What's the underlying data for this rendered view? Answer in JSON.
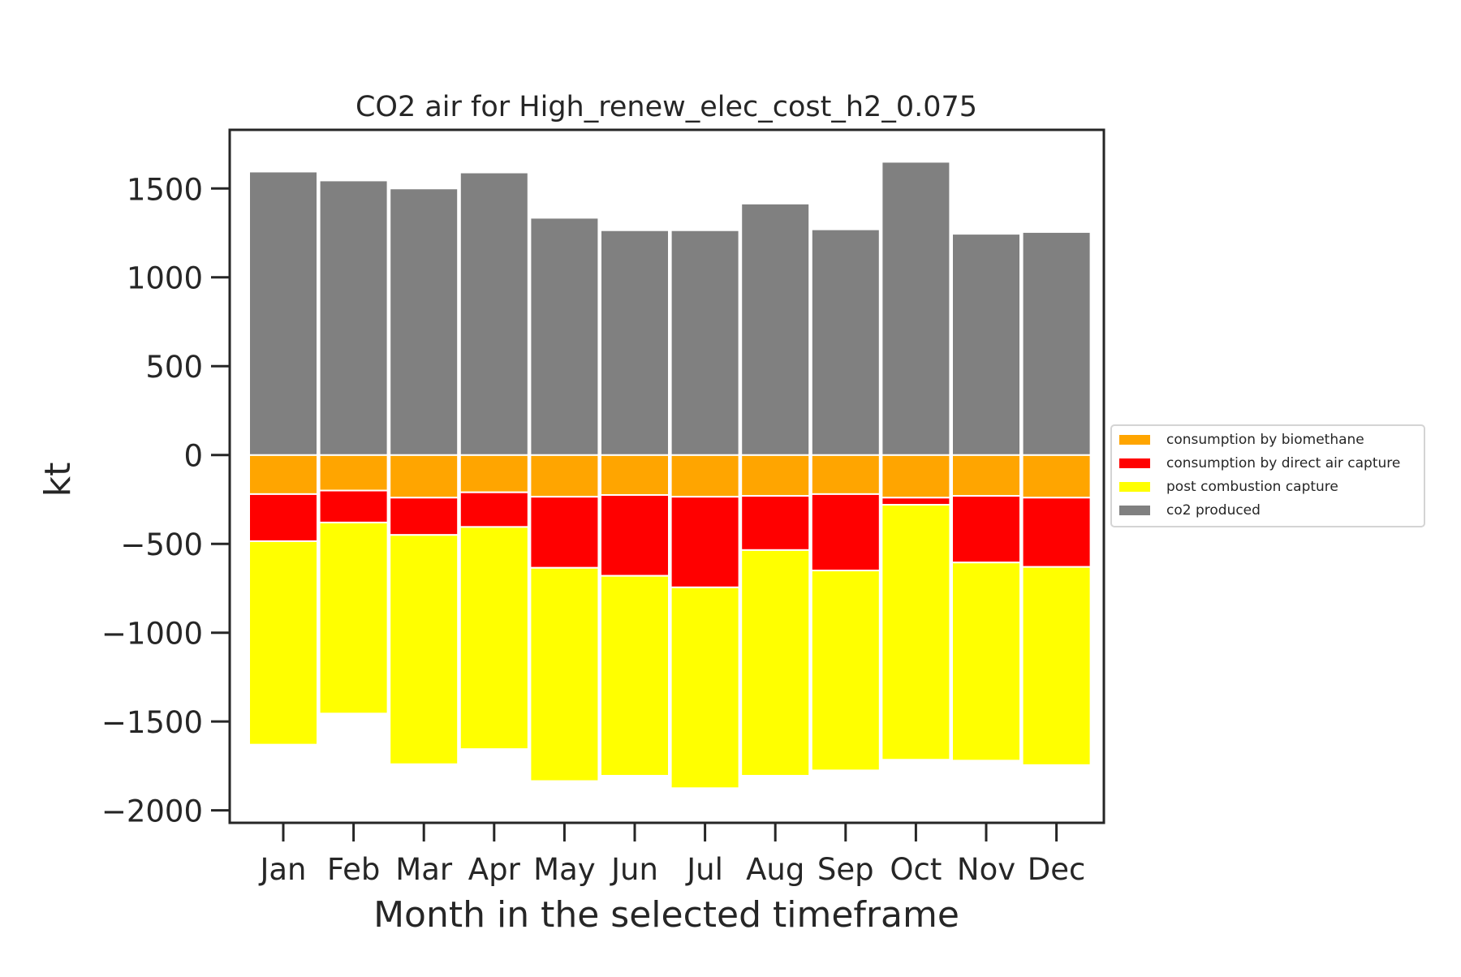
{
  "chart_data": {
    "type": "bar",
    "stacked": true,
    "title": "CO2 air for High_renew_elec_cost_h2_0.075",
    "xlabel": "Month in the selected timeframe",
    "ylabel": "kt",
    "categories": [
      "Jan",
      "Feb",
      "Mar",
      "Apr",
      "May",
      "Jun",
      "Jul",
      "Aug",
      "Sep",
      "Oct",
      "Nov",
      "Dec"
    ],
    "ylim": [
      -2070,
      1830
    ],
    "yticks": [
      1500,
      1000,
      500,
      0,
      -500,
      -1000,
      -1500,
      -2000
    ],
    "ytick_labels": [
      "1500",
      "1000",
      "500",
      "0",
      "−500",
      "−1000",
      "−1500",
      "−2000"
    ],
    "legend_position": "center-right outside",
    "series": [
      {
        "name": "consumption by biomethane",
        "color": "#FFA500",
        "values": [
          -220,
          -200,
          -240,
          -210,
          -235,
          -225,
          -235,
          -230,
          -220,
          -240,
          -230,
          -240
        ]
      },
      {
        "name": "consumption by direct air capture",
        "color": "#FF0000",
        "values": [
          -265,
          -180,
          -210,
          -195,
          -400,
          -455,
          -510,
          -305,
          -430,
          -40,
          -375,
          -390
        ]
      },
      {
        "name": "post combustion capture",
        "color": "#FFFF00",
        "values": [
          -1145,
          -1075,
          -1290,
          -1250,
          -1200,
          -1125,
          -1130,
          -1270,
          -1125,
          -1435,
          -1115,
          -1115
        ]
      },
      {
        "name": "co2 produced",
        "color": "#808080",
        "values": [
          1595,
          1545,
          1500,
          1590,
          1335,
          1265,
          1265,
          1415,
          1270,
          1650,
          1245,
          1255
        ]
      }
    ]
  }
}
